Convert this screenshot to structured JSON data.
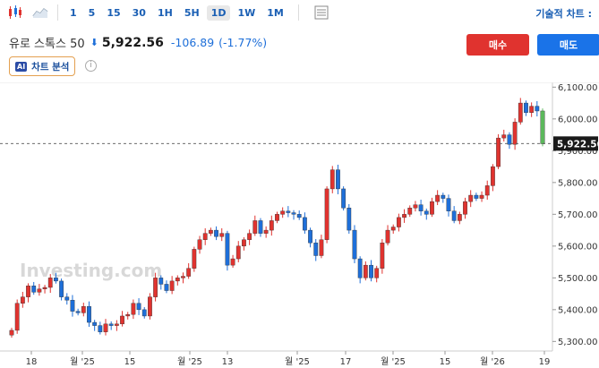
{
  "toolbar": {
    "intervals": [
      "1",
      "5",
      "15",
      "30",
      "1H",
      "5H",
      "1D",
      "1W",
      "1M"
    ],
    "active_interval": "1D",
    "right_link": "기술적 차트 :"
  },
  "header": {
    "name": "유로 스톡스 50",
    "price": "5,922.56",
    "change": "-106.89",
    "change_pct": "(-1.77%)"
  },
  "actions": {
    "buy": "매수",
    "sell": "매도"
  },
  "analysis": {
    "badge": "AI",
    "label": "차트 분석",
    "info": "i"
  },
  "watermark": "Investing.com",
  "colors": {
    "up": "#e0332f",
    "down": "#1e6fd9",
    "neutral": "#5cb85c"
  },
  "chart_data": {
    "type": "candlestick",
    "y_ticks": [
      "6,100.00",
      "6,000.00",
      "5,900.00",
      "5,800.00",
      "5,700.00",
      "5,600.00",
      "5,500.00",
      "5,400.00",
      "5,300.00"
    ],
    "ylim": [
      5270,
      6115
    ],
    "x_ticks": [
      "18",
      "월 '25",
      "15",
      "월 '25",
      "13",
      "월 '25",
      "17",
      "월 '25",
      "15",
      "월 '26",
      "19"
    ],
    "last_price_label": "5,922.56",
    "last_price": 5922.56,
    "closes": [
      5335,
      5420,
      5440,
      5475,
      5455,
      5465,
      5470,
      5500,
      5490,
      5440,
      5430,
      5395,
      5390,
      5410,
      5360,
      5350,
      5330,
      5355,
      5350,
      5355,
      5380,
      5385,
      5420,
      5400,
      5380,
      5440,
      5500,
      5480,
      5460,
      5490,
      5500,
      5505,
      5530,
      5590,
      5620,
      5640,
      5650,
      5630,
      5640,
      5540,
      5560,
      5600,
      5620,
      5640,
      5680,
      5640,
      5650,
      5680,
      5700,
      5710,
      5705,
      5700,
      5690,
      5650,
      5610,
      5570,
      5620,
      5780,
      5840,
      5780,
      5720,
      5650,
      5560,
      5500,
      5540,
      5500,
      5530,
      5610,
      5650,
      5660,
      5690,
      5700,
      5720,
      5730,
      5710,
      5700,
      5740,
      5760,
      5750,
      5710,
      5680,
      5700,
      5740,
      5760,
      5750,
      5760,
      5790,
      5850,
      5940,
      5950,
      5920,
      5990,
      6050,
      6020,
      6040,
      6025,
      5922
    ]
  }
}
